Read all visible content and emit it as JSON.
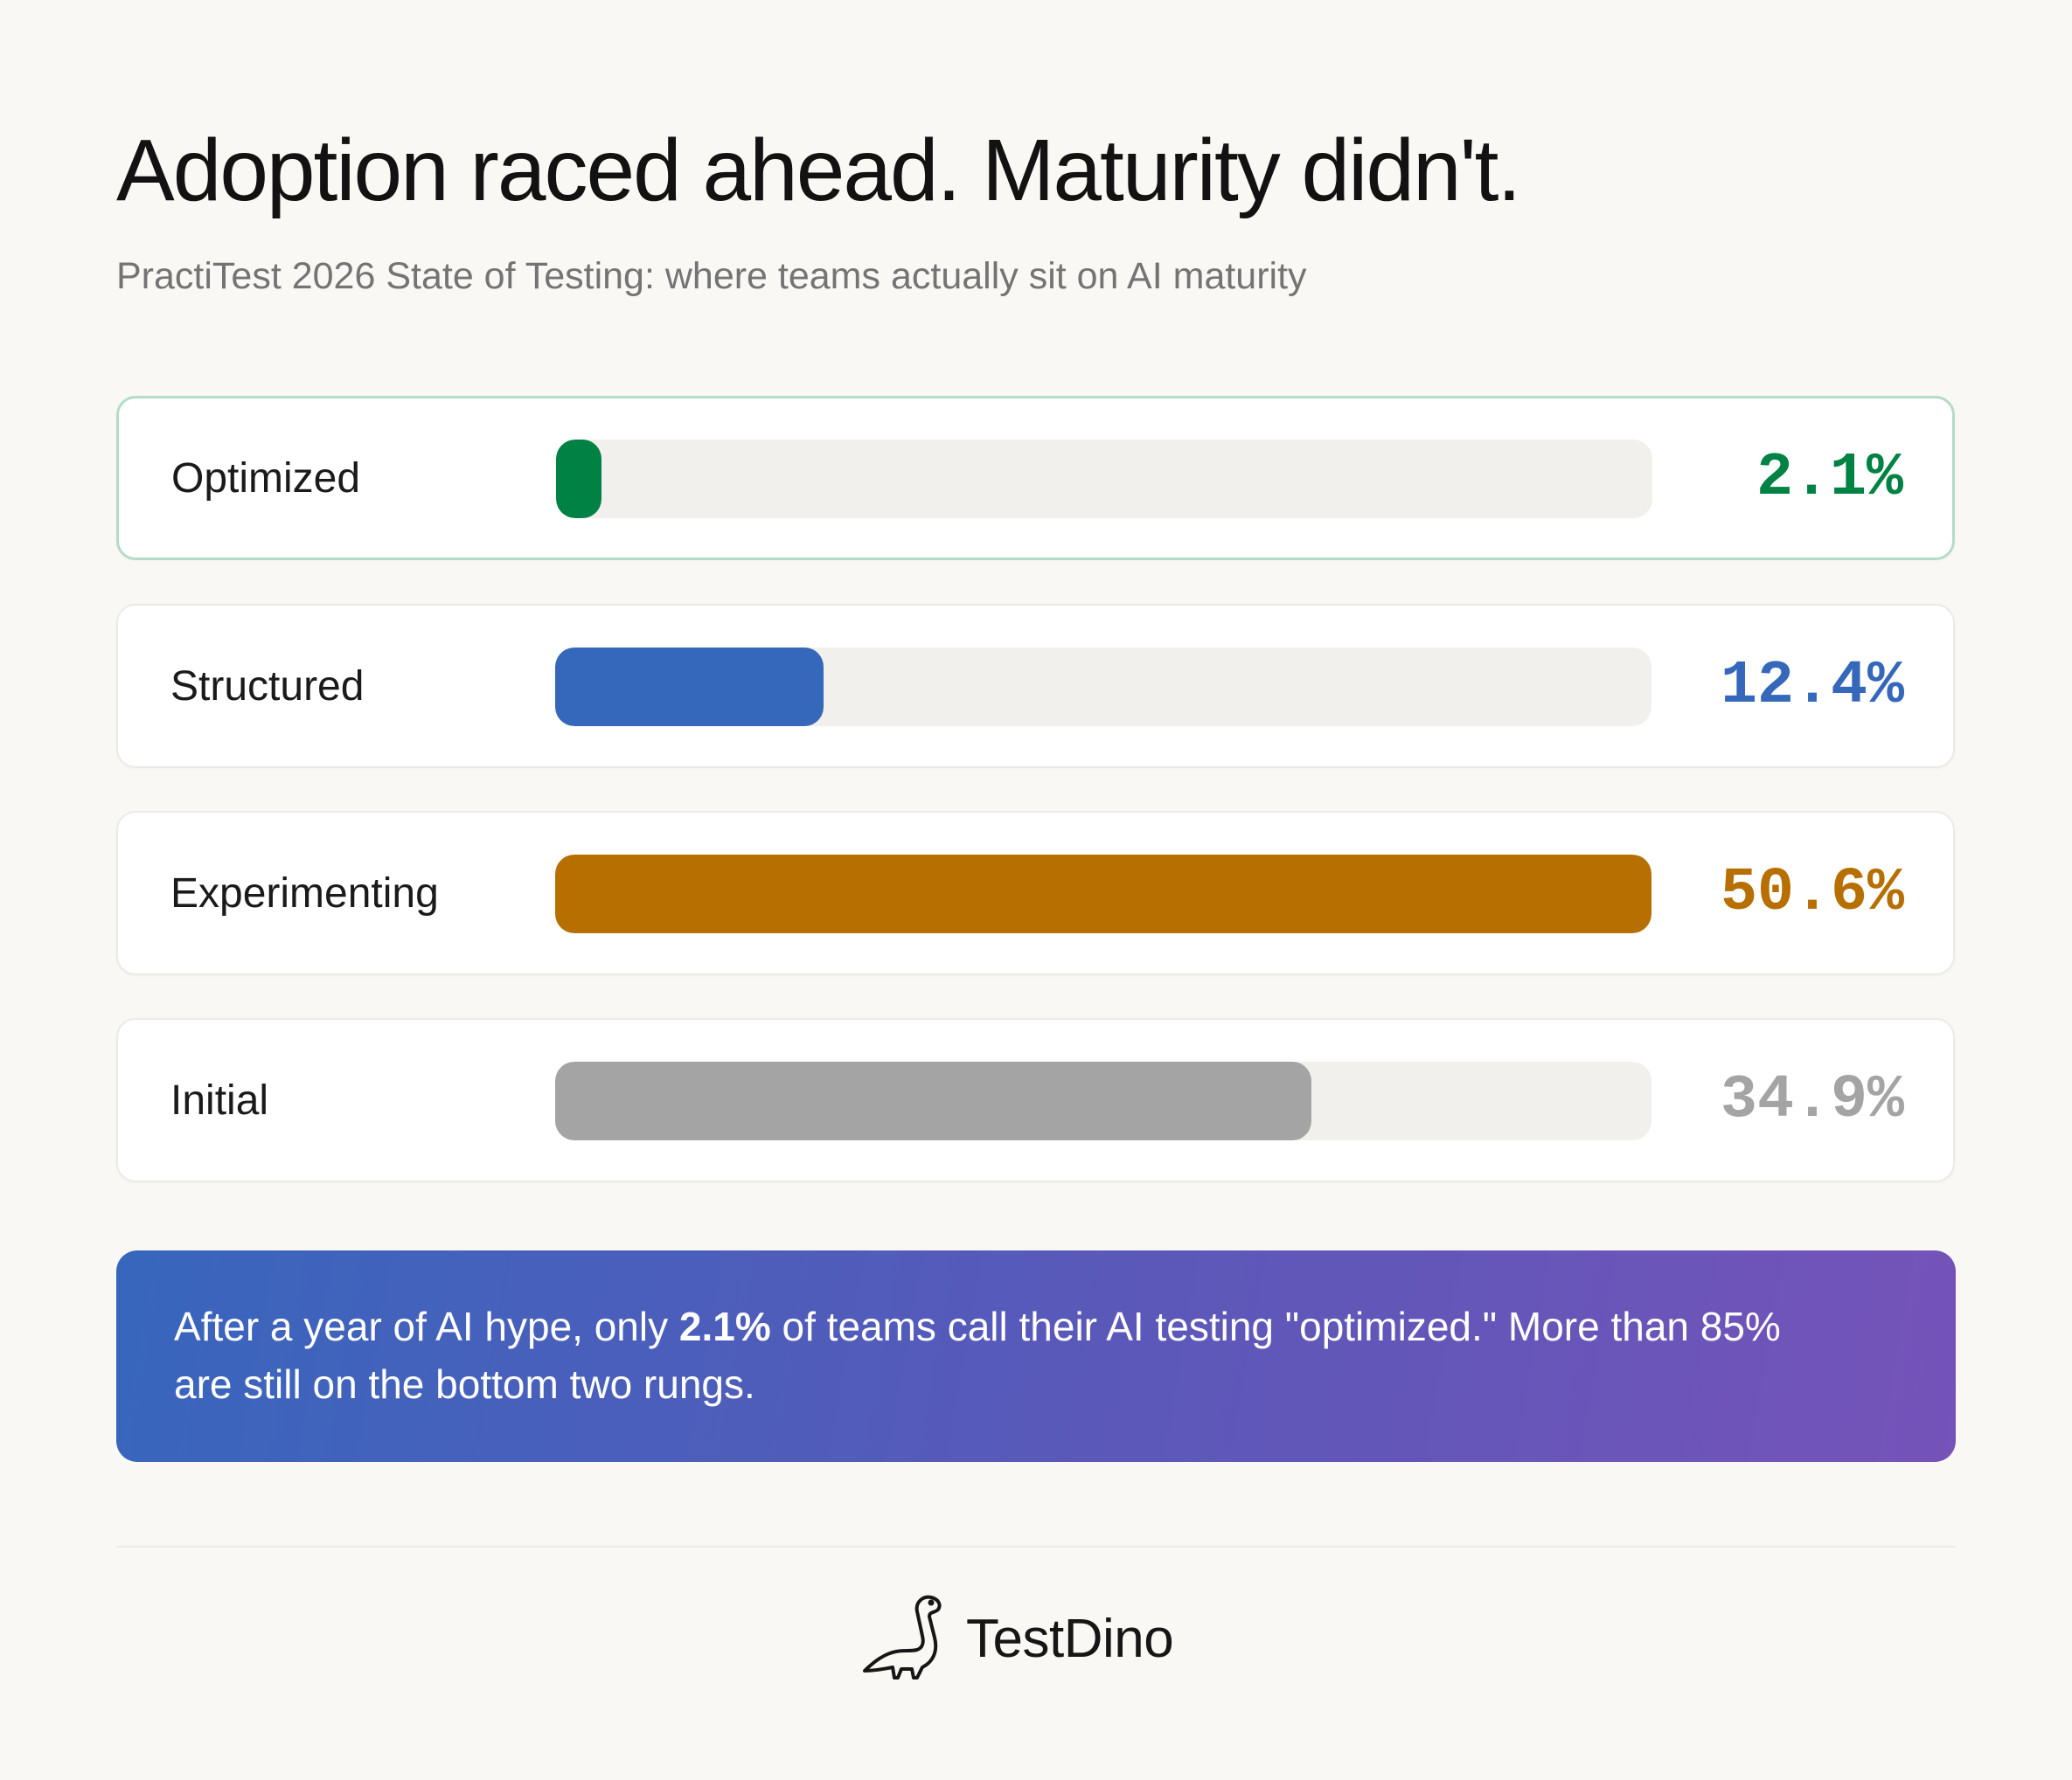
{
  "header": {
    "title": "Adoption raced ahead. Maturity didn't.",
    "subtitle": "PractiTest 2026 State of Testing: where teams actually sit on AI maturity"
  },
  "chart_data": {
    "type": "bar",
    "orientation": "horizontal",
    "categories": [
      "Optimized",
      "Structured",
      "Experimenting",
      "Initial"
    ],
    "values": [
      2.1,
      12.4,
      50.6,
      34.9
    ],
    "value_labels": [
      "2.1%",
      "12.4%",
      "50.6%",
      "34.9%"
    ],
    "colors": [
      "#008244",
      "#3567bb",
      "#b66f00",
      "#a4a4a4"
    ],
    "highlighted_category": "Optimized",
    "unit": "%"
  },
  "callout": {
    "pre": "After a year of AI hype, only ",
    "emphasis": "2.1%",
    "post": " of teams call their AI testing \"optimized.\" More than 85% are still on the bottom two rungs."
  },
  "footer": {
    "logo_icon": "dinosaur-icon",
    "brand": "TestDino"
  }
}
